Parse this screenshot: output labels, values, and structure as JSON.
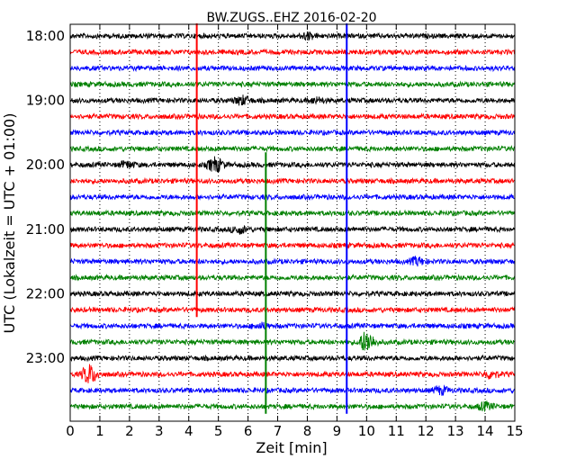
{
  "chart_data": {
    "type": "line",
    "title": "BW.ZUGS..EHZ 2016-02-20",
    "xlabel": "Zeit  [min]",
    "ylabel": "UTC (Lokalzeit = UTC + 01:00)",
    "xlim": [
      0,
      15
    ],
    "x_ticks": [
      "0",
      "1",
      "2",
      "3",
      "4",
      "5",
      "6",
      "7",
      "8",
      "9",
      "10",
      "11",
      "12",
      "13",
      "14",
      "15"
    ],
    "y_ticks": [
      "18:00",
      "19:00",
      "20:00",
      "21:00",
      "22:00",
      "23:00"
    ],
    "grid": "vertical dotted",
    "trace_interval_min": 15,
    "trace_count": 24,
    "trace_colors": [
      "#000000",
      "#ff0000",
      "#0000ff",
      "#008000"
    ],
    "series": [
      {
        "values": [
          18.0,
          19.0,
          20.0,
          21.0,
          22.0,
          23.0
        ]
      },
      {
        "values": [
          18.25,
          19.25,
          20.25,
          21.25,
          22.25,
          23.25
        ]
      },
      {
        "values": [
          18.5,
          19.5,
          20.5,
          21.5,
          22.5,
          23.5
        ]
      },
      {
        "values": [
          18.75,
          19.75,
          20.75,
          21.75,
          22.75,
          23.75
        ]
      }
    ],
    "markers": [
      {
        "color": "#ff0000",
        "x_min": 4.27,
        "from_trace": 0,
        "to_trace": 17
      },
      {
        "color": "#008000",
        "x_min": 6.6,
        "from_trace": 8,
        "to_trace": 23
      },
      {
        "color": "#0000ff",
        "x_min": 9.33,
        "from_trace": 0,
        "to_trace": 23
      }
    ],
    "events": [
      {
        "trace": 0,
        "x_min": 8.0,
        "amp": 0.25
      },
      {
        "trace": 4,
        "x_min": 5.8,
        "amp": 0.35
      },
      {
        "trace": 4,
        "x_min": 8.3,
        "amp": 0.2
      },
      {
        "trace": 8,
        "x_min": 1.9,
        "amp": 0.25
      },
      {
        "trace": 8,
        "x_min": 4.9,
        "amp": 0.6
      },
      {
        "trace": 12,
        "x_min": 5.7,
        "amp": 0.3
      },
      {
        "trace": 14,
        "x_min": 11.7,
        "amp": 0.3
      },
      {
        "trace": 18,
        "x_min": 6.4,
        "amp": 0.2
      },
      {
        "trace": 19,
        "x_min": 10.0,
        "amp": 0.9
      },
      {
        "trace": 21,
        "x_min": 0.65,
        "amp": 0.8
      },
      {
        "trace": 21,
        "x_min": 14.2,
        "amp": 0.3
      },
      {
        "trace": 22,
        "x_min": 12.5,
        "amp": 0.3
      },
      {
        "trace": 23,
        "x_min": 14.0,
        "amp": 0.3
      }
    ]
  }
}
